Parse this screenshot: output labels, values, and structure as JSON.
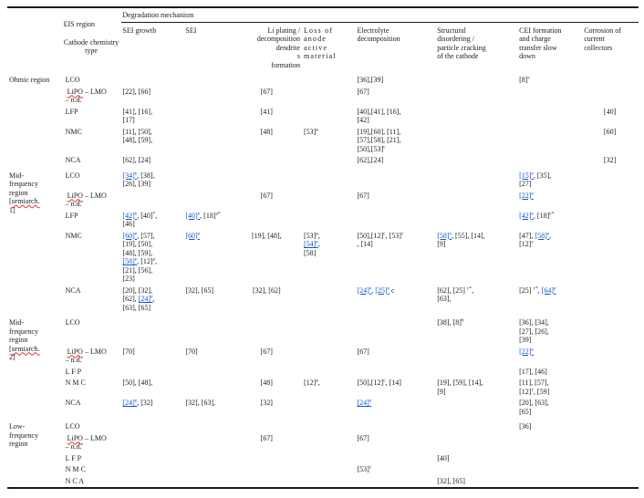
{
  "page": {
    "background": "#ffffff",
    "text_color": "#1c1c1c",
    "link_color": "#1155cc",
    "squiggle_color": "#e03131"
  },
  "table": {
    "eis_region_label": "EIS region",
    "cathode_label": "Cathode chemistry type",
    "degradation_label": "Degradation mechanism",
    "columns": [
      "SEI growth",
      "SEI",
      "Li plating /\ndecomposition\ndendrite\ns\nformation",
      "Loss of\nanode\nactive\nmaterial",
      "Electrolyte\ndecomposition",
      "Structural\ndisordering /\nparticle cracking\nof the cathode",
      "CEI formation\nand charge\ntransfer slow\ndown",
      "Corrosion of\ncurrent\ncollectors"
    ],
    "sections": [
      {
        "region": "Ohmic region",
        "rows": [
          {
            "cathode": "LCO",
            "cells": [
              "",
              "",
              "",
              "",
              "[36],[39]",
              "",
              "[8]{c}",
              ""
            ]
          },
          {
            "cathode": " ~LiPO~ – LMO\n– n.d.",
            "cells": [
              "[22], [66]",
              "",
              "[67]",
              "",
              "[67]",
              "",
              "",
              ""
            ]
          },
          {
            "cathode": "LFP",
            "cells": [
              "[41], [16],\n[17]",
              "",
              "[41]",
              "",
              "[40],[41], [16],\n[42]",
              "",
              "",
              "[40]"
            ]
          },
          {
            "cathode": "NMC",
            "cells": [
              "[11], [50],\n[48], [59],",
              "",
              "[48]",
              "[53]{a}",
              "[19],[60], [11],\n[57],[58], [21],\n[50],[53]{c}",
              "",
              "",
              "[60]"
            ]
          },
          {
            "cathode": "NCA",
            "cells": [
              "[62], [24]",
              "",
              "",
              "",
              "[62],[24]",
              "",
              "",
              "[32]"
            ]
          }
        ]
      },
      {
        "region": "Mid-\nfrequency\nregion\n[~semiarch.~\n1]",
        "rows": [
          {
            "cathode": "LCO",
            "cells": [
              "[[34|e]], [38],\n[26], [39]",
              "",
              "",
              "",
              "",
              "",
              "[[15|e]], [35],\n[27]",
              ""
            ]
          },
          {
            "cathode": " ~LiPO~ – LMO\n– n.d.",
            "cells": [
              "",
              "",
              "[67]",
              "",
              "[67]",
              "",
              "[[22|e]]",
              ""
            ]
          },
          {
            "cathode": "LFP",
            "cells": [
              "[[42|e]], [40]{*},\n[46]",
              "[[40|e]], [18]{a*}",
              "",
              "",
              "",
              "",
              "[[42|e]], [18]{c*}",
              ""
            ]
          },
          {
            "cathode": "NMC",
            "cells": [
              "[[60|e]], [57],\n[19], [50],\n[48], [59],\n[[58|e]], [12]{a},\n[21], [56],\n[23]",
              "[[60|e]]",
              "[19], [48],",
              "[53]{a},\n[[54|e]],\n[58]",
              "[50],[12]{c}, [53]{c}\n, [14]",
              "[[58|e]], [55], [14],\n[9]",
              "[47], [[58|e]],\n[12]{c}",
              ""
            ]
          },
          {
            "cathode": "NCA",
            "cells": [
              "[20], [32],\n[62], [[24|e]],\n[63], [65]",
              "[32], [65]",
              "[32], [62]",
              "",
              "[[24|e]], [[25|e]] c",
              "[62], [25] {c*},\n[63],",
              "[25] {c*}, [[64|e]]",
              ""
            ]
          }
        ]
      },
      {
        "region": "Mid-\nfrequency\nregion\n[~semiarch.~\n2]",
        "rows": [
          {
            "cathode": "LCO",
            "cells": [
              "",
              "",
              "",
              "",
              "",
              "[38], [8]{b}",
              "[36], [34],\n[27], [26],\n[39]",
              ""
            ]
          },
          {
            "cathode": " ~LiPO~ – LMO\n– n.d.",
            "cells": [
              "[70]",
              "[70]",
              "[67]",
              "",
              "[67]",
              "",
              "[[22|e]]",
              ""
            ]
          },
          {
            "cathode": "L F P",
            "cells": [
              "",
              "",
              "",
              "",
              "",
              "",
              "[17], [46]",
              ""
            ]
          },
          {
            "cathode": "N M C",
            "cells": [
              "[50], [48],",
              "",
              "[48]",
              "[12]{a},",
              "[50],[12]{c}, [14]",
              "[19], [59], [14],\n[9]",
              "[11], [57],\n[12]{c}, [59]",
              ""
            ]
          },
          {
            "cathode": "NCA",
            "cells": [
              "[[24|e]], [32]",
              "[32], [63],",
              "[32]",
              "",
              "[[24|e]]",
              "",
              "[20], [63],\n[65]",
              ""
            ]
          }
        ]
      },
      {
        "region": "Low-\nfrequency\nregion",
        "rows": [
          {
            "cathode": "LCO",
            "cells": [
              "",
              "",
              "",
              "",
              "",
              "",
              "[36]",
              ""
            ]
          },
          {
            "cathode": " ~LiPO~ – LMO\n– n.d.",
            "cells": [
              "",
              "",
              "[67]",
              "",
              "[67]",
              "",
              "",
              ""
            ]
          },
          {
            "cathode": "L F P",
            "cells": [
              "",
              "",
              "",
              "",
              "",
              "[40]",
              "",
              ""
            ]
          },
          {
            "cathode": "N M C",
            "cells": [
              "",
              "",
              "",
              "",
              "[53]{c}",
              "",
              "",
              ""
            ]
          },
          {
            "cathode": "N C A",
            "cells": [
              "",
              "",
              "",
              "",
              "",
              "[32], [65]",
              "",
              ""
            ]
          }
        ]
      }
    ]
  }
}
